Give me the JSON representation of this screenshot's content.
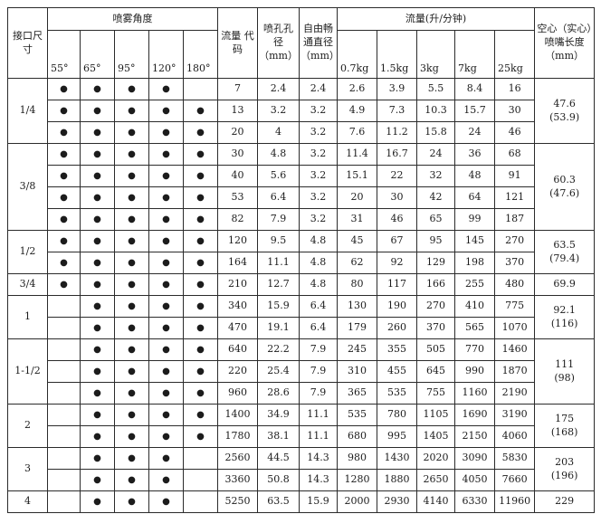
{
  "table": {
    "header": {
      "size": "接口尺寸",
      "spray_angle": "喷雾角度",
      "angles": [
        "55°",
        "65°",
        "95°",
        "120°",
        "180°"
      ],
      "flow_code": "流量 代码",
      "orifice": "喷孔孔径（mm）",
      "free_passage": "自由畅通直径（mm）",
      "flow": "流量(升/分钟)",
      "pressures": [
        "0.7kg",
        "1.5kg",
        "3kg",
        "7kg",
        "25kg"
      ],
      "length": "空心（实心）喷嘴长度（mm）"
    },
    "dot_glyph": "●",
    "rows": [
      {
        "size": "1/4",
        "size_span": 3,
        "angles": [
          1,
          1,
          1,
          1,
          0
        ],
        "code": "7",
        "orifice": "2.4",
        "free": "2.4",
        "flows": [
          "2.6",
          "3.9",
          "5.5",
          "8.4",
          "16"
        ],
        "length": "47.6\n(53.9)",
        "length_span": 3
      },
      {
        "angles": [
          1,
          1,
          1,
          1,
          1
        ],
        "code": "13",
        "orifice": "3.2",
        "free": "3.2",
        "flows": [
          "4.9",
          "7.3",
          "10.3",
          "15.7",
          "30"
        ]
      },
      {
        "angles": [
          1,
          1,
          1,
          1,
          1
        ],
        "code": "20",
        "orifice": "4",
        "free": "3.2",
        "flows": [
          "7.6",
          "11.2",
          "15.8",
          "24",
          "46"
        ]
      },
      {
        "size": "3/8",
        "size_span": 4,
        "angles": [
          1,
          1,
          1,
          1,
          1
        ],
        "code": "30",
        "orifice": "4.8",
        "free": "3.2",
        "flows": [
          "11.4",
          "16.7",
          "24",
          "36",
          "68"
        ],
        "length": "60.3\n(47.6)",
        "length_span": 4
      },
      {
        "angles": [
          1,
          1,
          1,
          1,
          1
        ],
        "code": "40",
        "orifice": "5.6",
        "free": "3.2",
        "flows": [
          "15.1",
          "22",
          "32",
          "48",
          "91"
        ]
      },
      {
        "angles": [
          1,
          1,
          1,
          1,
          1
        ],
        "code": "53",
        "orifice": "6.4",
        "free": "3.2",
        "flows": [
          "20",
          "30",
          "42",
          "64",
          "121"
        ]
      },
      {
        "angles": [
          1,
          1,
          1,
          1,
          1
        ],
        "code": "82",
        "orifice": "7.9",
        "free": "3.2",
        "flows": [
          "31",
          "46",
          "65",
          "99",
          "187"
        ]
      },
      {
        "size": "1/2",
        "size_span": 2,
        "angles": [
          1,
          1,
          1,
          1,
          1
        ],
        "code": "120",
        "orifice": "9.5",
        "free": "4.8",
        "flows": [
          "45",
          "67",
          "95",
          "145",
          "270"
        ],
        "length": "63.5\n(79.4)",
        "length_span": 2
      },
      {
        "angles": [
          1,
          1,
          1,
          1,
          1
        ],
        "code": "164",
        "orifice": "11.1",
        "free": "4.8",
        "flows": [
          "62",
          "92",
          "129",
          "198",
          "370"
        ]
      },
      {
        "size": "3/4",
        "size_span": 1,
        "angles": [
          1,
          1,
          1,
          1,
          1
        ],
        "code": "210",
        "orifice": "12.7",
        "free": "4.8",
        "flows": [
          "80",
          "117",
          "166",
          "255",
          "480"
        ],
        "length": "69.9",
        "length_span": 1
      },
      {
        "size": "1",
        "size_span": 2,
        "angles": [
          0,
          1,
          1,
          1,
          1
        ],
        "code": "340",
        "orifice": "15.9",
        "free": "6.4",
        "flows": [
          "130",
          "190",
          "270",
          "410",
          "775"
        ],
        "length": "92.1\n(116)",
        "length_span": 2
      },
      {
        "angles": [
          0,
          1,
          1,
          1,
          1
        ],
        "code": "470",
        "orifice": "19.1",
        "free": "6.4",
        "flows": [
          "179",
          "260",
          "370",
          "565",
          "1070"
        ]
      },
      {
        "size": "1-1/2",
        "size_span": 3,
        "angles": [
          0,
          1,
          1,
          1,
          1
        ],
        "code": "640",
        "orifice": "22.2",
        "free": "7.9",
        "flows": [
          "245",
          "355",
          "505",
          "770",
          "1460"
        ],
        "length": "111\n(98)",
        "length_span": 3
      },
      {
        "angles": [
          0,
          1,
          1,
          1,
          1
        ],
        "code": "220",
        "orifice": "25.4",
        "free": "7.9",
        "flows": [
          "310",
          "455",
          "645",
          "990",
          "1870"
        ]
      },
      {
        "angles": [
          0,
          1,
          1,
          1,
          1
        ],
        "code": "960",
        "orifice": "28.6",
        "free": "7.9",
        "flows": [
          "365",
          "535",
          "755",
          "1160",
          "2190"
        ]
      },
      {
        "size": "2",
        "size_span": 2,
        "angles": [
          0,
          1,
          1,
          1,
          1
        ],
        "code": "1400",
        "orifice": "34.9",
        "free": "11.1",
        "flows": [
          "535",
          "780",
          "1105",
          "1690",
          "3190"
        ],
        "length": "175\n(168)",
        "length_span": 2
      },
      {
        "angles": [
          0,
          1,
          1,
          1,
          1
        ],
        "code": "1780",
        "orifice": "38.1",
        "free": "11.1",
        "flows": [
          "680",
          "995",
          "1405",
          "2150",
          "4060"
        ]
      },
      {
        "size": "3",
        "size_span": 2,
        "angles": [
          0,
          1,
          1,
          1,
          0
        ],
        "code": "2560",
        "orifice": "44.5",
        "free": "14.3",
        "flows": [
          "980",
          "1430",
          "2020",
          "3090",
          "5830"
        ],
        "length": "203\n(196)",
        "length_span": 2
      },
      {
        "angles": [
          0,
          1,
          1,
          1,
          0
        ],
        "code": "3360",
        "orifice": "50.8",
        "free": "14.3",
        "flows": [
          "1280",
          "1880",
          "2650",
          "4050",
          "7660"
        ]
      },
      {
        "size": "4",
        "size_span": 1,
        "angles": [
          0,
          1,
          1,
          1,
          0
        ],
        "code": "5250",
        "orifice": "63.5",
        "free": "15.9",
        "flows": [
          "2000",
          "2930",
          "4140",
          "6330",
          "11960"
        ],
        "length": "229",
        "length_span": 1
      }
    ]
  }
}
